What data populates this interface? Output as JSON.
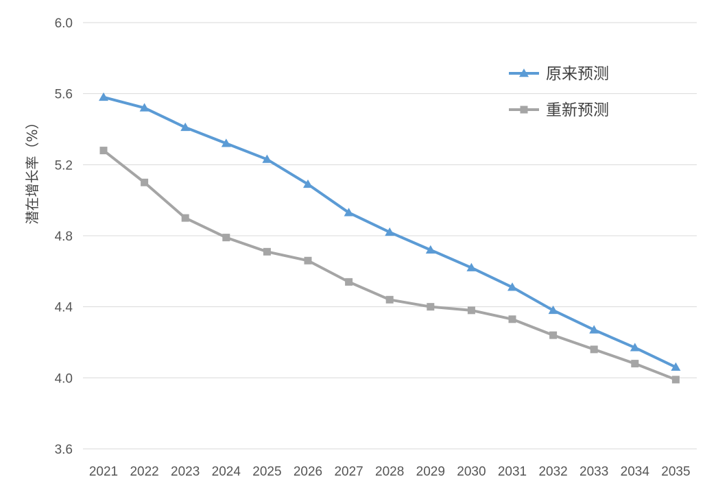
{
  "chart_data": {
    "type": "line",
    "title": "",
    "xlabel": "",
    "ylabel": "潜在增长率（%）",
    "x": [
      "2021",
      "2022",
      "2023",
      "2024",
      "2025",
      "2026",
      "2027",
      "2028",
      "2029",
      "2030",
      "2031",
      "2032",
      "2033",
      "2034",
      "2035"
    ],
    "ylim": [
      3.6,
      6.0
    ],
    "yticks": [
      "3.6",
      "4.0",
      "4.4",
      "4.8",
      "5.2",
      "5.6",
      "6.0"
    ],
    "grid": true,
    "legend_position": "top-right",
    "series": [
      {
        "name": "原来预测",
        "color": "#5b9bd5",
        "marker": "triangle",
        "values": [
          5.58,
          5.52,
          5.41,
          5.32,
          5.23,
          5.09,
          4.93,
          4.82,
          4.72,
          4.62,
          4.51,
          4.38,
          4.27,
          4.17,
          4.06
        ]
      },
      {
        "name": "重新预测",
        "color": "#a5a5a5",
        "marker": "square",
        "values": [
          5.28,
          5.1,
          4.9,
          4.79,
          4.71,
          4.66,
          4.54,
          4.44,
          4.4,
          4.38,
          4.33,
          4.24,
          4.16,
          4.08,
          3.99
        ]
      }
    ]
  }
}
